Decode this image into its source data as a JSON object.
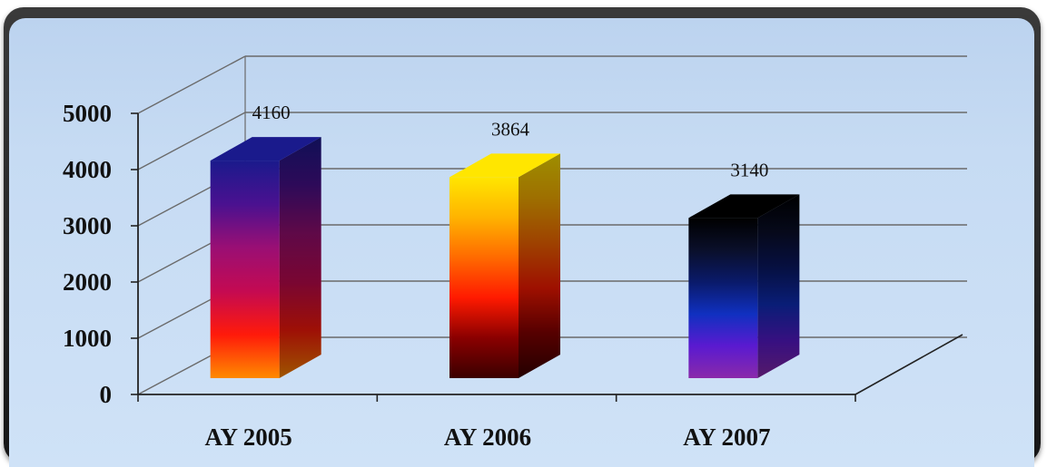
{
  "chart_data": {
    "type": "bar",
    "style": "3d",
    "categories": [
      "AY 2005",
      "AY 2006",
      "AY 2007"
    ],
    "values": [
      4160,
      3864,
      3140
    ],
    "data_labels": [
      "4160",
      "3864",
      "3140"
    ],
    "ylim": [
      0,
      5000
    ],
    "yticks": [
      "0",
      "1000",
      "2000",
      "3000",
      "4000",
      "5000"
    ],
    "grid": true,
    "legend": "none",
    "bar_gradients": [
      [
        "#1a1a8c",
        "#4a1190",
        "#9a0f74",
        "#c40a52",
        "#ff1a0a",
        "#ff8a00"
      ],
      [
        "#ffe600",
        "#ffb300",
        "#ff6a00",
        "#ff1a00",
        "#8a0000",
        "#3a0000"
      ],
      [
        "#000000",
        "#0a0f2a",
        "#0a1a6a",
        "#1030c0",
        "#5a1ad0",
        "#8a2aaa"
      ]
    ],
    "colors": {
      "background": "#c8dcf4",
      "grid": "#6a6a6a",
      "frame": "#222222"
    }
  }
}
